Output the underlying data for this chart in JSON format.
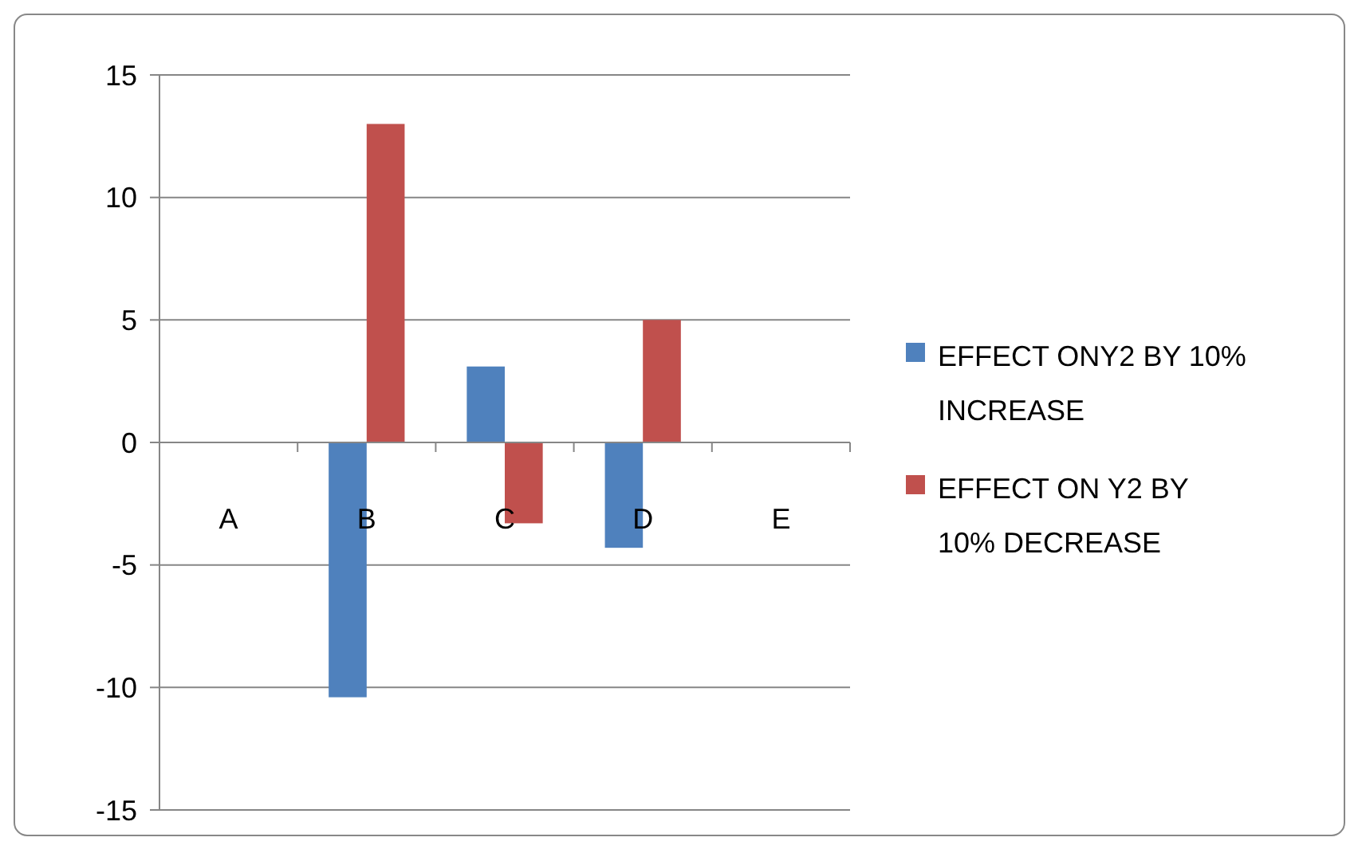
{
  "chart_data": {
    "type": "bar",
    "categories": [
      "A",
      "B",
      "C",
      "D",
      "E"
    ],
    "series": [
      {
        "name": "EFFECT ONY2 BY 10% INCREASE",
        "color": "#4f81bd",
        "values": [
          null,
          -10.4,
          3.1,
          -4.3,
          null
        ]
      },
      {
        "name": "EFFECT ON Y2 BY 10% DECREASE",
        "color": "#c0504d",
        "values": [
          null,
          13.0,
          -3.3,
          5.0,
          null
        ]
      }
    ],
    "ylim": [
      -15,
      15
    ],
    "yticks": [
      -15,
      -10,
      -5,
      0,
      5,
      10,
      15
    ],
    "grid": "y",
    "legend": "right"
  }
}
